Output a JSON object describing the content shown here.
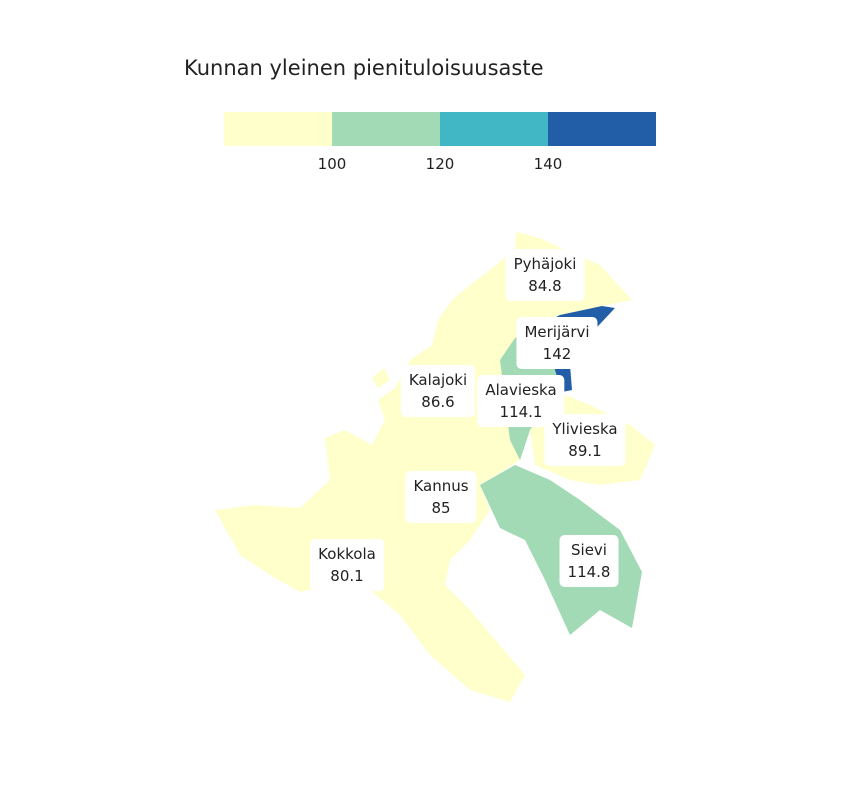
{
  "title": "Kunnan yleinen pienituloisuusaste",
  "legend": {
    "colors": [
      "#ffffcc",
      "#a1dab4",
      "#41b6c4",
      "#225ea8"
    ],
    "ticks": [
      "100",
      "120",
      "140"
    ]
  },
  "municipalities": [
    {
      "name": "Pyhäjoki",
      "value": "84.8",
      "color": "#ffffcc"
    },
    {
      "name": "Merijärvi",
      "value": "142",
      "color": "#225ea8"
    },
    {
      "name": "Kalajoki",
      "value": "86.6",
      "color": "#ffffcc"
    },
    {
      "name": "Alavieska",
      "value": "114.1",
      "color": "#a1dab4"
    },
    {
      "name": "Ylivieska",
      "value": "89.1",
      "color": "#ffffcc"
    },
    {
      "name": "Kannus",
      "value": "85",
      "color": "#ffffcc"
    },
    {
      "name": "Sievi",
      "value": "114.8",
      "color": "#a1dab4"
    },
    {
      "name": "Kokkola",
      "value": "80.1",
      "color": "#ffffcc"
    }
  ]
}
